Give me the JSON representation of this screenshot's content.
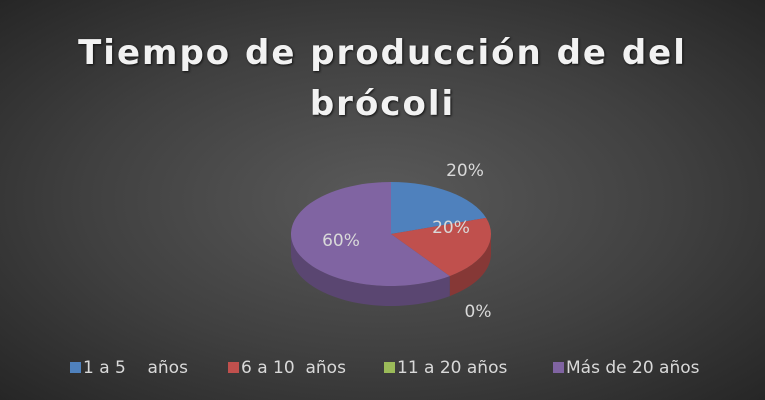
{
  "chart_data": {
    "type": "pie",
    "title": "Tiempo de producción de del brócoli",
    "categories": [
      "1 a 5    años",
      "6 a 10  años",
      "11 a 20 años",
      "Más de 20 años"
    ],
    "values": [
      20,
      20,
      0,
      60
    ],
    "value_labels": [
      "20%",
      "20%",
      "0%",
      "60%"
    ],
    "colors": [
      "#4f81bd",
      "#c0504d",
      "#9bbb59",
      "#8064a2"
    ],
    "legend": "bottom"
  }
}
